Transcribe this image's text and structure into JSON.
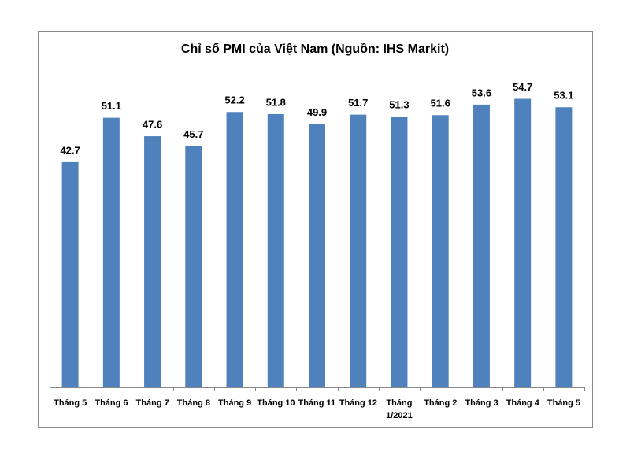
{
  "chart_data": {
    "type": "bar",
    "title": "Chỉ số PMI của Việt Nam (Nguồn: IHS Markit)",
    "categories": [
      "Tháng 5",
      "Tháng 6",
      "Tháng 7",
      "Tháng 8",
      "Tháng 9",
      "Tháng 10",
      "Tháng 11",
      "Tháng 12",
      "Tháng 1/2021",
      "Tháng 2",
      "Tháng 3",
      "Tháng 4",
      "Tháng 5"
    ],
    "values": [
      42.7,
      51.1,
      47.6,
      45.7,
      52.2,
      51.8,
      49.9,
      51.7,
      51.3,
      51.6,
      53.6,
      54.7,
      53.1
    ],
    "color": "#4f81bd",
    "ylim": [
      0,
      60
    ]
  }
}
